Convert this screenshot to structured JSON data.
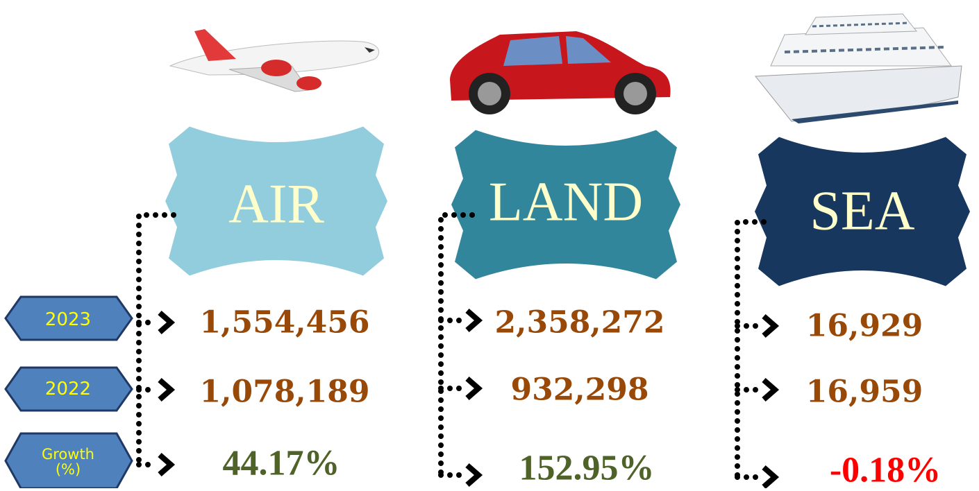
{
  "row_labels": [
    "2023",
    "2022",
    "Growth (%)"
  ],
  "columns": [
    {
      "name": "AIR",
      "values": [
        "1,554,456",
        "1,078,189",
        "44.17%"
      ]
    },
    {
      "name": "LAND",
      "values": [
        "2,358,272",
        "932,298",
        "152.95%"
      ]
    },
    {
      "name": "SEA",
      "values": [
        "16,929",
        "16,959",
        "-0.18%"
      ]
    }
  ]
}
